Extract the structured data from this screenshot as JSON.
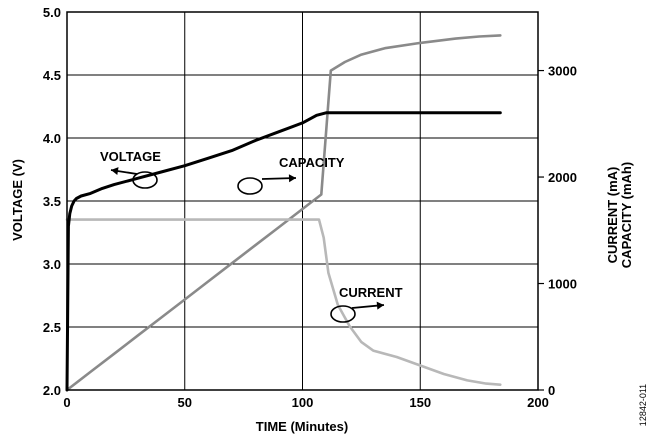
{
  "chart_data": {
    "type": "line",
    "xlabel": "TIME (Minutes)",
    "ylabel_left": "VOLTAGE (V)",
    "ylabel_right": [
      "CURRENT (mA)",
      "CAPACITY (mAh)"
    ],
    "xlim": [
      0,
      200
    ],
    "ylim_left": [
      2.0,
      5.0
    ],
    "ylim_right": [
      0,
      3550
    ],
    "x_ticks": [
      "0",
      "50",
      "100",
      "150",
      "200"
    ],
    "y_left_ticks": [
      "2.0",
      "2.5",
      "3.0",
      "3.5",
      "4.0",
      "4.5",
      "5.0"
    ],
    "y_right_ticks": [
      "0",
      "1000",
      "2000",
      "3000"
    ],
    "grid": true,
    "series": [
      {
        "name": "VOLTAGE",
        "axis": "left",
        "color": "#000000",
        "points": [
          [
            0,
            2.0
          ],
          [
            0.6,
            3.3
          ],
          [
            1.2,
            3.4
          ],
          [
            2,
            3.46
          ],
          [
            3,
            3.5
          ],
          [
            4,
            3.52
          ],
          [
            6,
            3.54
          ],
          [
            10,
            3.56
          ],
          [
            15,
            3.6
          ],
          [
            20,
            3.63
          ],
          [
            30,
            3.68
          ],
          [
            40,
            3.73
          ],
          [
            50,
            3.78
          ],
          [
            60,
            3.84
          ],
          [
            70,
            3.9
          ],
          [
            80,
            3.98
          ],
          [
            90,
            4.05
          ],
          [
            100,
            4.12
          ],
          [
            106,
            4.18
          ],
          [
            110,
            4.2
          ],
          [
            140,
            4.2
          ],
          [
            184,
            4.2
          ]
        ]
      },
      {
        "name": "CAPACITY",
        "axis": "right",
        "color": "#8a8a8a",
        "points": [
          [
            0,
            0
          ],
          [
            10,
            170
          ],
          [
            20,
            340
          ],
          [
            30,
            510
          ],
          [
            40,
            680
          ],
          [
            50,
            850
          ],
          [
            60,
            1020
          ],
          [
            70,
            1190
          ],
          [
            80,
            1360
          ],
          [
            90,
            1530
          ],
          [
            100,
            1700
          ],
          [
            108,
            1836
          ],
          [
            112,
            3000
          ],
          [
            118,
            3080
          ],
          [
            125,
            3150
          ],
          [
            135,
            3210
          ],
          [
            150,
            3260
          ],
          [
            165,
            3300
          ],
          [
            175,
            3320
          ],
          [
            184,
            3330
          ]
        ]
      },
      {
        "name": "CURRENT",
        "axis": "right",
        "color": "#b8b8b8",
        "points": [
          [
            0,
            1600
          ],
          [
            60,
            1600
          ],
          [
            107,
            1600
          ],
          [
            109,
            1430
          ],
          [
            111,
            1100
          ],
          [
            115,
            800
          ],
          [
            120,
            600
          ],
          [
            125,
            450
          ],
          [
            130,
            370
          ],
          [
            140,
            310
          ],
          [
            150,
            230
          ],
          [
            160,
            150
          ],
          [
            170,
            90
          ],
          [
            178,
            60
          ],
          [
            184,
            50
          ]
        ]
      }
    ],
    "annotations": [
      {
        "text": "VOLTAGE",
        "x": 15,
        "y_left": 3.9
      },
      {
        "text": "CAPACITY",
        "x": 87,
        "y_left": 3.75
      },
      {
        "text": "CURRENT",
        "x": 118,
        "y_left": 2.75
      }
    ]
  },
  "figure_id": "12842-011"
}
